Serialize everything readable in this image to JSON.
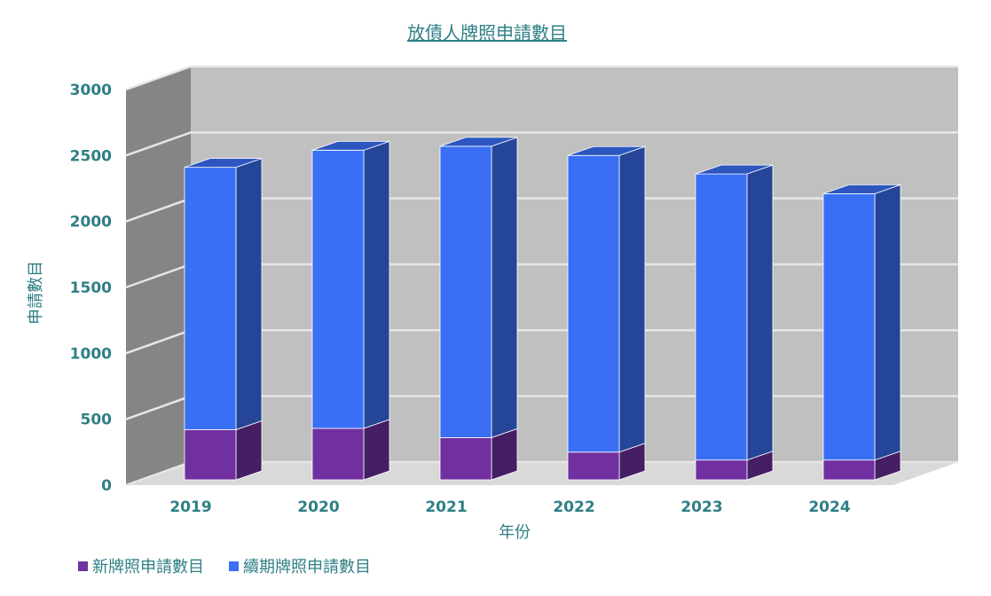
{
  "chart_data": {
    "type": "bar",
    "stacked": true,
    "three_d": true,
    "title": "放債人牌照申請數目",
    "xlabel": "年份",
    "ylabel": "申請數目",
    "categories": [
      "2019",
      "2020",
      "2021",
      "2022",
      "2023",
      "2024"
    ],
    "ylim": [
      0,
      3000
    ],
    "yticks": [
      0,
      500,
      1000,
      1500,
      2000,
      2500,
      3000
    ],
    "grid": true,
    "legend_position": "bottom-left",
    "series": [
      {
        "name": "新牌照申請數目",
        "color": "#7030a0",
        "values": [
          380,
          390,
          320,
          210,
          150,
          150
        ]
      },
      {
        "name": "續期牌照申請數目",
        "color": "#3a6ff5",
        "values": [
          1990,
          2110,
          2210,
          2250,
          2170,
          2020
        ]
      }
    ],
    "colors": {
      "text": "#2f7f86",
      "back_wall": "#c0c0c0",
      "side_wall": "#858585",
      "floor": "#d9d9d9",
      "grid": "#e6e6e6"
    }
  }
}
